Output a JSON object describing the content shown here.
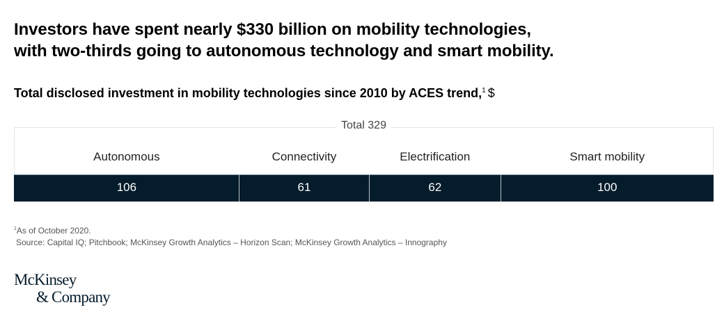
{
  "headline": {
    "line1": "Investors have spent nearly $330 billion on mobility technologies,",
    "line2": "with two-thirds going to autonomous technology and smart mobility."
  },
  "subtitle": {
    "text": "Total disclosed investment in mobility technologies since 2010 by ACES trend,",
    "footnote_marker": "1",
    "unit": "$"
  },
  "chart_data": {
    "type": "bar",
    "orientation": "horizontal-stacked",
    "title": "Total disclosed investment in mobility technologies since 2010 by ACES trend, $",
    "total_label": "Total 329",
    "total": 329,
    "categories": [
      "Autonomous",
      "Connectivity",
      "Electrification",
      "Smart mobility"
    ],
    "values": [
      106,
      61,
      62,
      100
    ],
    "unit": "$ billion",
    "bar_color": "#051c2c"
  },
  "footnotes": {
    "note1_marker": "1",
    "note1": "As of October 2020.",
    "source": "Source: Capital IQ; Pitchbook; McKinsey Growth Analytics – Horizon Scan; McKinsey Growth Analytics – Innography"
  },
  "logo": {
    "line1": "McKinsey",
    "line2": "& Company"
  }
}
